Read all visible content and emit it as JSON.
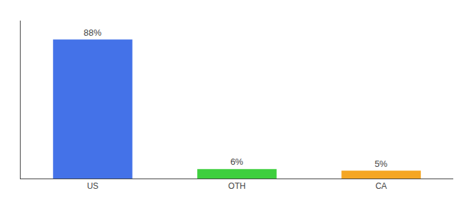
{
  "chart_data": {
    "type": "bar",
    "categories": [
      "US",
      "OTH",
      "CA"
    ],
    "values": [
      88,
      6,
      5
    ],
    "value_labels": [
      "88%",
      "6%",
      "5%"
    ],
    "data_labels": true,
    "colors": [
      "#4472e8",
      "#3ecf3e",
      "#f5a623"
    ],
    "ylim": [
      0,
      100
    ],
    "tick_labels": "x",
    "grid": false
  }
}
